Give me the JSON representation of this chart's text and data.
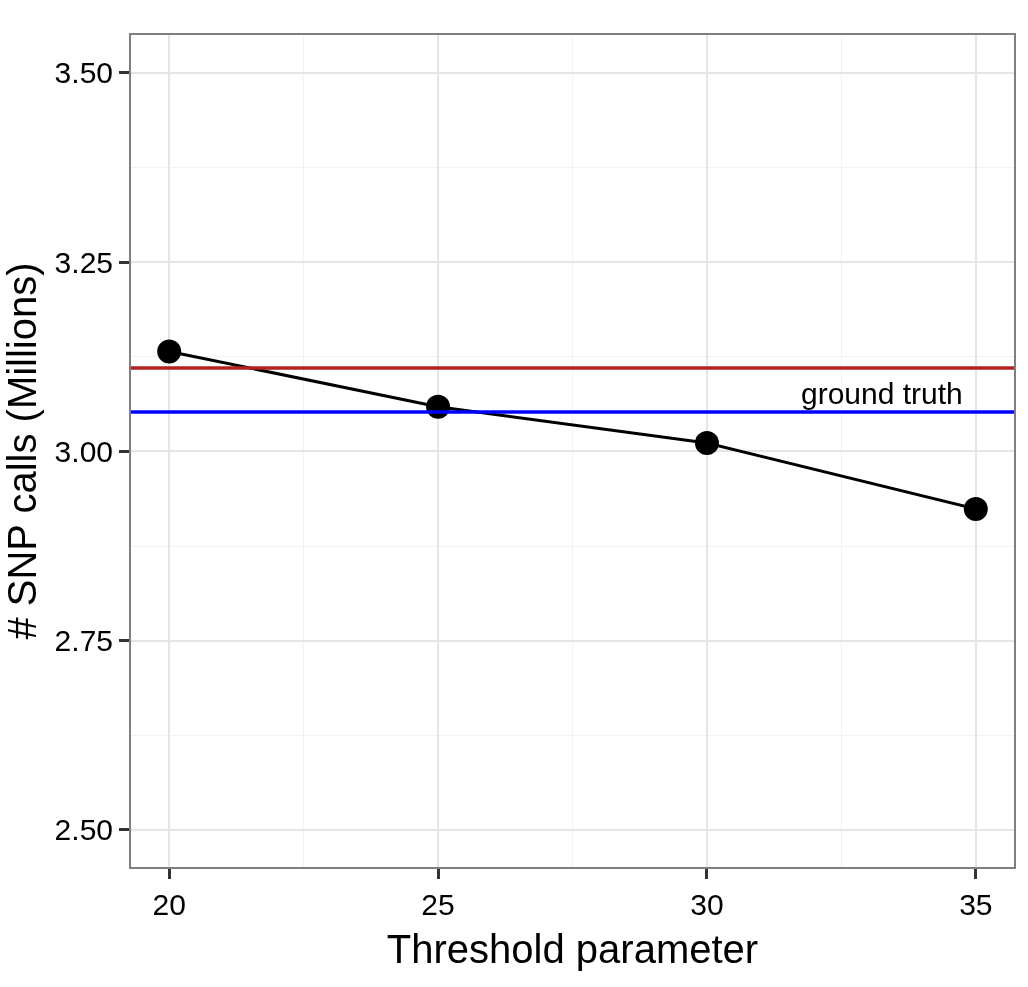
{
  "chart_data": {
    "type": "line",
    "xlabel": "Threshold parameter",
    "ylabel": "# SNP calls (Millions)",
    "x": [
      20,
      25,
      30,
      35
    ],
    "series": [
      {
        "color": "#000000",
        "values": [
          3.132,
          3.059,
          3.011,
          2.924
        ]
      }
    ],
    "xlim": [
      19.29,
      35.71
    ],
    "xticks": [
      20,
      25,
      30,
      35
    ],
    "ylim": [
      2.451,
      3.55
    ],
    "yticks": [
      {
        "value": 2.5,
        "label": "2.50"
      },
      2.75,
      {
        "value": 3,
        "label": "3.00"
      },
      3.25,
      {
        "value": 3.5,
        "label": "3.50"
      }
    ],
    "ref_lines": [
      {
        "axis": "y",
        "value": 3.11,
        "color": "#b22222"
      },
      {
        "axis": "y",
        "value": 3.052,
        "label": "ground truth",
        "color": "#0000ff"
      }
    ],
    "grid": true,
    "marker": "circle",
    "line_style": "solid",
    "legend": false
  }
}
